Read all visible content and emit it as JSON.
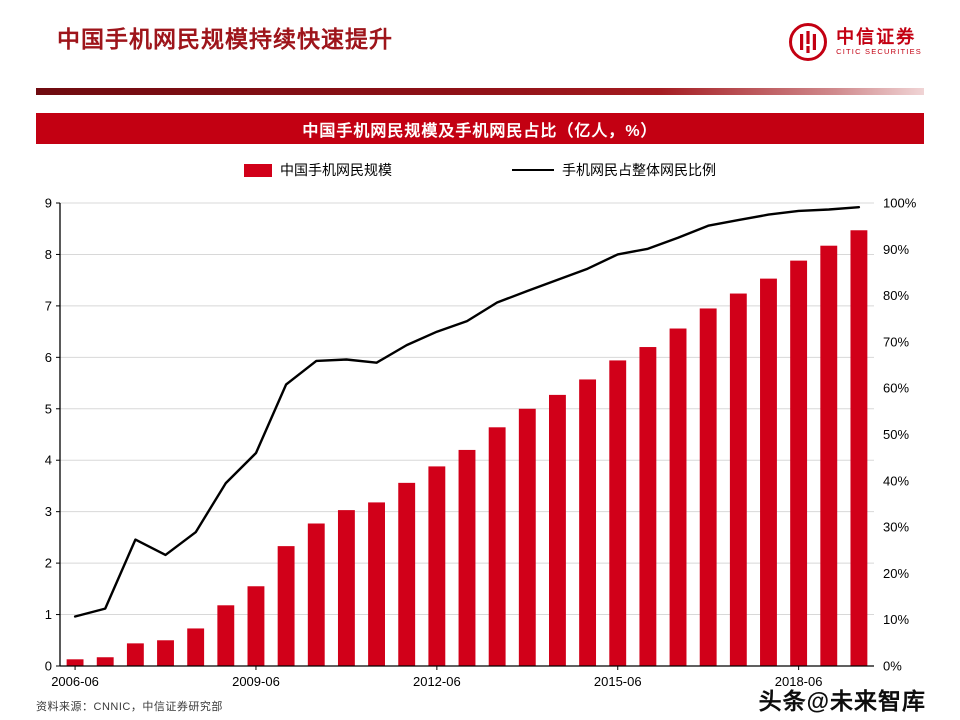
{
  "header": {
    "title": "中国手机网民规模持续快速提升",
    "logo_cn": "中信证券",
    "logo_en": "CITIC SECURITIES"
  },
  "banner": {
    "title": "中国手机网民规模及手机网民占比（亿人，%）"
  },
  "footer": {
    "source": "资料来源：CNNIC，中信证券研究部",
    "watermark": "头条@未来智库"
  },
  "colors": {
    "accent_dark_red": "#9e151b",
    "banner_red": "#c30012",
    "bar_red": "#d10019",
    "line_black": "#000000",
    "gridline_gray": "#d8d8d8"
  },
  "chart_data": {
    "type": "bar",
    "subtype": "combo-bar-line",
    "title": "中国手机网民规模及手机网民占比（亿人，%）",
    "categories": [
      "2006-06",
      "2006-12",
      "2007-06",
      "2007-12",
      "2008-06",
      "2008-12",
      "2009-06",
      "2009-12",
      "2010-06",
      "2010-12",
      "2011-06",
      "2011-12",
      "2012-06",
      "2012-12",
      "2013-06",
      "2013-12",
      "2014-06",
      "2014-12",
      "2015-06",
      "2015-12",
      "2016-06",
      "2016-12",
      "2017-06",
      "2017-12",
      "2018-06",
      "2018-12",
      "2019-06"
    ],
    "series": [
      {
        "name": "中国手机网民规模",
        "type": "bar",
        "axis": "left",
        "color": "#d10019",
        "values": [
          0.13,
          0.17,
          0.44,
          0.5,
          0.73,
          1.18,
          1.55,
          2.33,
          2.77,
          3.03,
          3.18,
          3.56,
          3.88,
          4.2,
          4.64,
          5.0,
          5.27,
          5.57,
          5.94,
          6.2,
          6.56,
          6.95,
          7.24,
          7.53,
          7.88,
          8.17,
          8.47
        ]
      },
      {
        "name": "手机网民占整体网民比例",
        "type": "line",
        "axis": "right",
        "color": "#000000",
        "values": [
          10.7,
          12.4,
          27.3,
          24.0,
          28.9,
          39.5,
          46.0,
          60.8,
          65.9,
          66.2,
          65.5,
          69.3,
          72.2,
          74.5,
          78.5,
          81.0,
          83.4,
          85.8,
          88.9,
          90.1,
          92.5,
          95.1,
          96.3,
          97.5,
          98.3,
          98.6,
          99.1
        ]
      }
    ],
    "left_axis": {
      "min": 0,
      "max": 9,
      "step": 1,
      "label": ""
    },
    "right_axis": {
      "min": 0,
      "max": 100,
      "step": 10,
      "suffix": "%",
      "label": ""
    },
    "x_ticks": [
      {
        "index": 0,
        "label": "2006-06"
      },
      {
        "index": 6,
        "label": "2009-06"
      },
      {
        "index": 12,
        "label": "2012-06"
      },
      {
        "index": 18,
        "label": "2015-06"
      },
      {
        "index": 24,
        "label": "2018-06"
      }
    ],
    "grid": true,
    "legend_position": "top"
  }
}
